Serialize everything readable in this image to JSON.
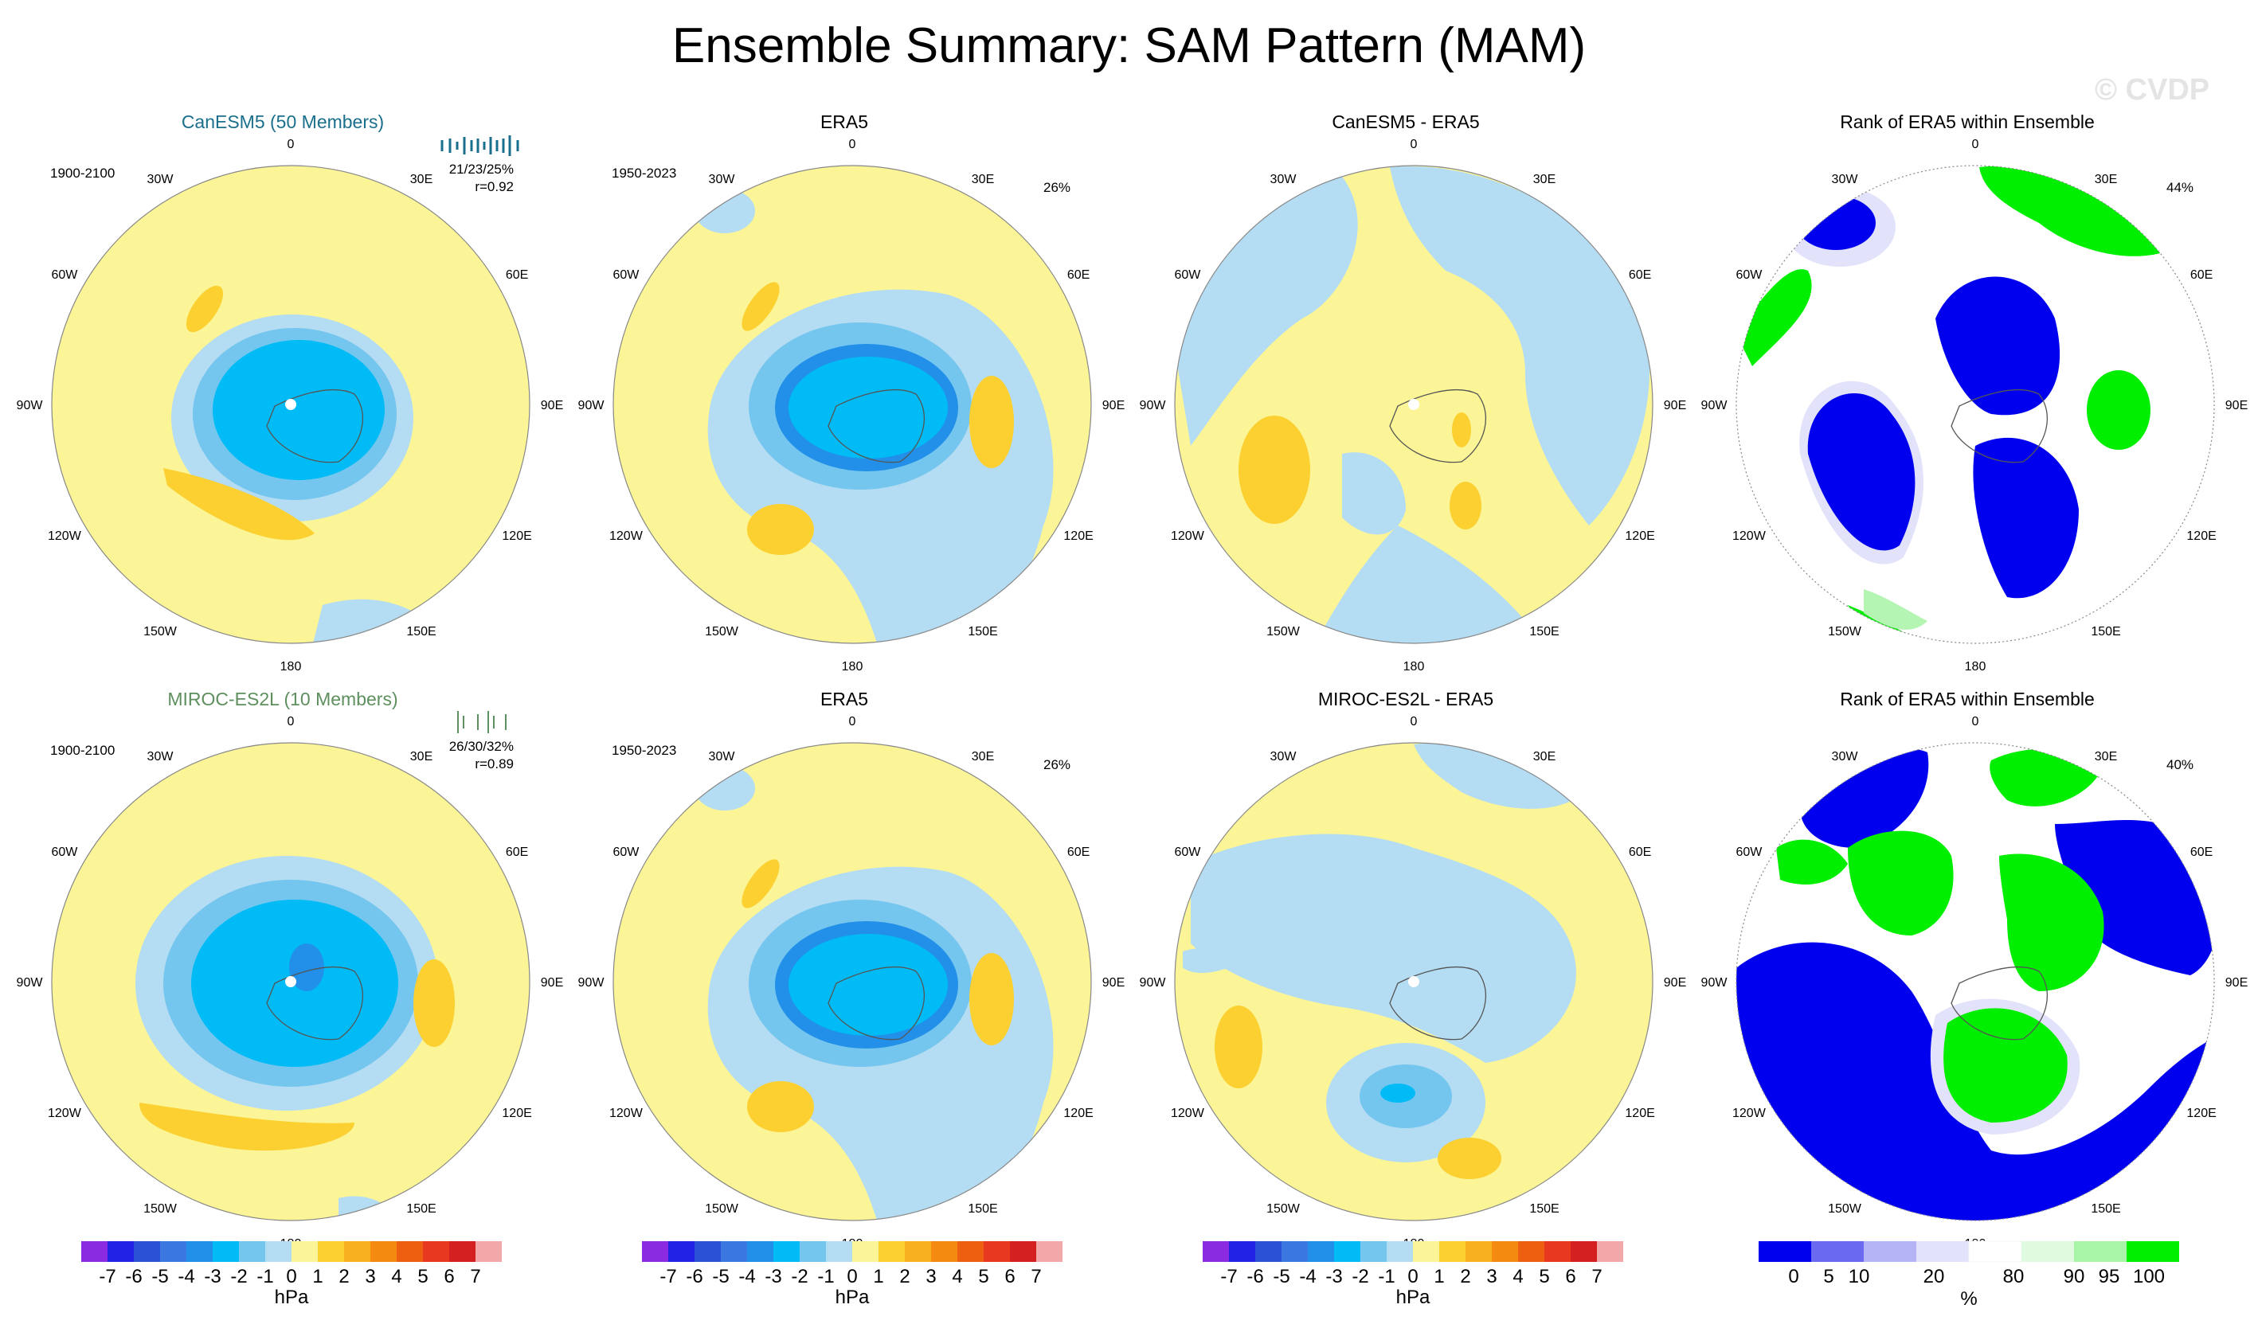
{
  "title": "Ensemble Summary: SAM Pattern (MAM)",
  "watermark": "© CVDP",
  "colors": {
    "neg7": "#8a2be2",
    "neg6": "#2222e6",
    "neg5": "#2b52d6",
    "neg4": "#3a78e0",
    "neg3": "#2290e8",
    "neg2": "#00bbf5",
    "neg1": "#74c6ee",
    "neg0": "#b4dcf2",
    "pos0": "#fbf598",
    "pos1": "#fbd030",
    "pos2": "#f7b020",
    "pos3": "#f58a10",
    "pos4": "#ee6010",
    "pos5": "#e83820",
    "pos6": "#d42020",
    "pos7": "#f2a8a8",
    "rank0": "#0000ee",
    "rank5": "#6a6af0",
    "rank10": "#b4b4f6",
    "rank20": "#e2e2fa",
    "rank80": "#ffffff",
    "rank90": "#e0fae0",
    "rank95": "#a8f5a8",
    "rank100": "#00ee00"
  },
  "longitude_labels": [
    "0",
    "30E",
    "60E",
    "90E",
    "120E",
    "150E",
    "180",
    "150W",
    "120W",
    "90W",
    "60W",
    "30W"
  ],
  "rows": [
    {
      "model_panel": {
        "title": "CanESM5 (50 Members)",
        "period": "1900-2100",
        "stats_line1": "21/23/25%",
        "stats_line2": "r=0.92"
      },
      "obs_panel": {
        "title": "ERA5",
        "period": "1950-2023",
        "pct": "26%"
      },
      "diff_panel": {
        "title": "CanESM5 - ERA5"
      },
      "rank_panel": {
        "title": "Rank of ERA5 within Ensemble",
        "pct": "44%"
      }
    },
    {
      "model_panel": {
        "title": "MIROC-ES2L (10 Members)",
        "period": "1900-2100",
        "stats_line1": "26/30/32%",
        "stats_line2": "r=0.89"
      },
      "obs_panel": {
        "title": "ERA5",
        "period": "1950-2023",
        "pct": "26%"
      },
      "diff_panel": {
        "title": "MIROC-ES2L - ERA5"
      },
      "rank_panel": {
        "title": "Rank of ERA5 within Ensemble",
        "pct": "40%"
      }
    }
  ],
  "colorbars": {
    "hpa": {
      "labels": [
        "-7",
        "-6",
        "-5",
        "-4",
        "-3",
        "-2",
        "-1",
        "0",
        "1",
        "2",
        "3",
        "4",
        "5",
        "6",
        "7"
      ],
      "unit": "hPa"
    },
    "rank": {
      "labels": [
        "0",
        "5",
        "10",
        "20",
        "80",
        "90",
        "95",
        "100"
      ],
      "unit": "%"
    }
  },
  "chart_data": [
    {
      "type": "heatmap",
      "title": "CanESM5 (50 Members)",
      "units": "hPa",
      "projection": "south polar stereographic",
      "min_value": -3,
      "max_value": 1
    },
    {
      "type": "heatmap",
      "title": "ERA5",
      "units": "hPa",
      "projection": "south polar stereographic",
      "min_value": -4,
      "max_value": 1
    },
    {
      "type": "heatmap",
      "title": "CanESM5 - ERA5",
      "units": "hPa",
      "projection": "south polar stereographic",
      "min_value": -1,
      "max_value": 1
    },
    {
      "type": "heatmap",
      "title": "Rank of ERA5 within Ensemble",
      "units": "%",
      "projection": "south polar stereographic",
      "categories": [
        "0",
        "5",
        "10",
        "20",
        "80",
        "90",
        "95",
        "100"
      ]
    },
    {
      "type": "heatmap",
      "title": "MIROC-ES2L (10 Members)",
      "units": "hPa",
      "projection": "south polar stereographic",
      "min_value": -3,
      "max_value": 1
    },
    {
      "type": "heatmap",
      "title": "ERA5",
      "units": "hPa",
      "projection": "south polar stereographic",
      "min_value": -4,
      "max_value": 1
    },
    {
      "type": "heatmap",
      "title": "MIROC-ES2L - ERA5",
      "units": "hPa",
      "projection": "south polar stereographic",
      "min_value": -2,
      "max_value": 1
    },
    {
      "type": "heatmap",
      "title": "Rank of ERA5 within Ensemble",
      "units": "%",
      "projection": "south polar stereographic",
      "categories": [
        "0",
        "5",
        "10",
        "20",
        "80",
        "90",
        "95",
        "100"
      ]
    }
  ]
}
